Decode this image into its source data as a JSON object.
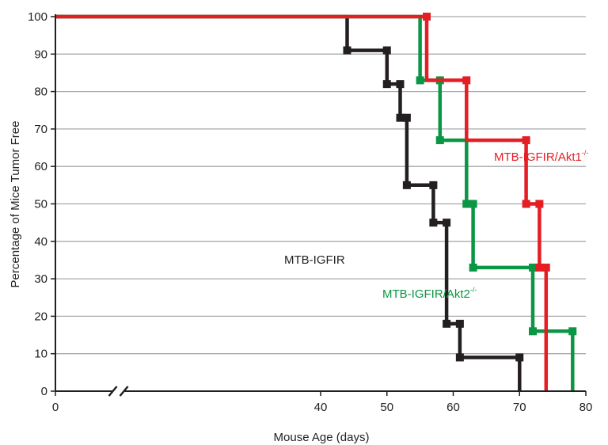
{
  "chart_data": {
    "type": "line",
    "subtype": "step (Kaplan-Meier)",
    "title": "",
    "xlabel": "Mouse Age (days)",
    "ylabel": "Percentage of Mice Tumor Free",
    "xlim": [
      0,
      80
    ],
    "ylim": [
      0,
      100
    ],
    "xticks": [
      0,
      40,
      50,
      60,
      70,
      80
    ],
    "yticks": [
      0,
      10,
      20,
      30,
      40,
      50,
      60,
      70,
      80,
      90,
      100
    ],
    "axis_break": "x-axis between 0 and 40",
    "grid": "horizontal",
    "series": [
      {
        "name": "MTB-IGFIR",
        "label_main": "MTB-IGFIR",
        "label_sup": "",
        "color": "#231f20",
        "points": [
          [
            0,
            100
          ],
          [
            44,
            100
          ],
          [
            44,
            91
          ],
          [
            50,
            91
          ],
          [
            50,
            82
          ],
          [
            52,
            82
          ],
          [
            52,
            73
          ],
          [
            53,
            73
          ],
          [
            53,
            55
          ],
          [
            57,
            55
          ],
          [
            57,
            45
          ],
          [
            59,
            45
          ],
          [
            59,
            18
          ],
          [
            61,
            18
          ],
          [
            61,
            9
          ],
          [
            70,
            9
          ],
          [
            70,
            0
          ]
        ],
        "markers": [
          [
            44,
            91
          ],
          [
            50,
            91
          ],
          [
            50,
            82
          ],
          [
            52,
            82
          ],
          [
            52,
            73
          ],
          [
            53,
            73
          ],
          [
            53,
            55
          ],
          [
            57,
            55
          ],
          [
            57,
            45
          ],
          [
            59,
            45
          ],
          [
            59,
            18
          ],
          [
            61,
            18
          ],
          [
            61,
            9
          ],
          [
            70,
            9
          ]
        ]
      },
      {
        "name": "MTB-IGFIR/Akt1-/-",
        "label_main": "MTB-IGFIR/Akt1",
        "label_sup": "-/-",
        "color": "#e31e24",
        "points": [
          [
            0,
            100
          ],
          [
            56,
            100
          ],
          [
            56,
            83
          ],
          [
            62,
            83
          ],
          [
            62,
            67
          ],
          [
            71,
            67
          ],
          [
            71,
            50
          ],
          [
            73,
            50
          ],
          [
            73,
            33
          ],
          [
            74,
            33
          ],
          [
            74,
            0
          ]
        ],
        "markers": [
          [
            56,
            100
          ],
          [
            62,
            83
          ],
          [
            71,
            67
          ],
          [
            71,
            50
          ],
          [
            73,
            50
          ],
          [
            73,
            33
          ],
          [
            74,
            33
          ]
        ]
      },
      {
        "name": "MTB-IGFIR/Akt2-/-",
        "label_main": "MTB-IGFIR/Akt2",
        "label_sup": "-/-",
        "color": "#0a9644",
        "points": [
          [
            0,
            100
          ],
          [
            55,
            100
          ],
          [
            55,
            83
          ],
          [
            58,
            83
          ],
          [
            58,
            67
          ],
          [
            62,
            67
          ],
          [
            62,
            50
          ],
          [
            63,
            50
          ],
          [
            63,
            33
          ],
          [
            72,
            33
          ],
          [
            72,
            16
          ],
          [
            78,
            16
          ],
          [
            78,
            0
          ]
        ],
        "markers": [
          [
            55,
            83
          ],
          [
            58,
            83
          ],
          [
            58,
            67
          ],
          [
            62,
            50
          ],
          [
            63,
            50
          ],
          [
            63,
            33
          ],
          [
            72,
            33
          ],
          [
            72,
            16
          ],
          [
            78,
            16
          ]
        ]
      }
    ]
  }
}
